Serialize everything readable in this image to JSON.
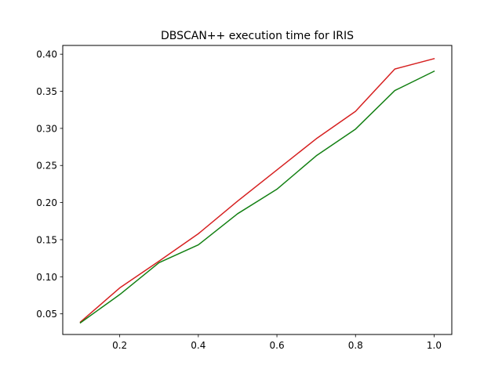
{
  "chart_data": {
    "type": "line",
    "title": "DBSCAN++  execution time for IRIS",
    "xlabel": "",
    "ylabel": "",
    "xlim": [
      0.055,
      1.045
    ],
    "ylim": [
      0.0222,
      0.4118
    ],
    "grid": false,
    "x": [
      0.1,
      0.2,
      0.3,
      0.4,
      0.5,
      0.6,
      0.7,
      0.8,
      0.9,
      1.0
    ],
    "x_ticks": [
      0.2,
      0.4,
      0.6,
      0.8,
      1.0
    ],
    "x_tick_labels": [
      "0.2",
      "0.4",
      "0.6",
      "0.8",
      "1.0"
    ],
    "y_ticks": [
      0.05,
      0.1,
      0.15,
      0.2,
      0.25,
      0.3,
      0.35,
      0.4
    ],
    "y_tick_labels": [
      "0.05",
      "0.10",
      "0.15",
      "0.20",
      "0.25",
      "0.30",
      "0.35",
      "0.40"
    ],
    "series": [
      {
        "color": "#d62020",
        "values": [
          0.039,
          0.085,
          0.121,
          0.158,
          0.202,
          0.244,
          0.286,
          0.323,
          0.38,
          0.394
        ]
      },
      {
        "color": "#138013",
        "values": [
          0.038,
          0.076,
          0.119,
          0.143,
          0.185,
          0.218,
          0.263,
          0.299,
          0.351,
          0.377
        ]
      }
    ]
  }
}
